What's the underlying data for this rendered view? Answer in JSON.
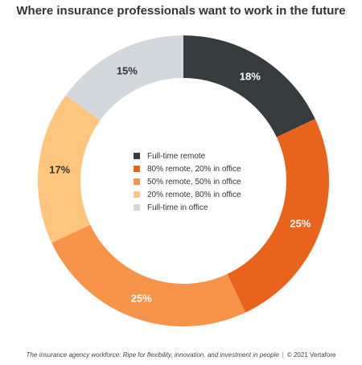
{
  "chart_data": {
    "type": "pie",
    "title": "Where insurance professionals want to work in the future",
    "slices": [
      {
        "label": "Full-time remote",
        "value": 18,
        "value_label": "18%",
        "color": "#363b3e",
        "label_color": "#ffffff"
      },
      {
        "label": "80% remote, 20% in office",
        "value": 25,
        "value_label": "25%",
        "color": "#e8641c",
        "label_color": "#ffffff"
      },
      {
        "label": "50% remote, 50% in office",
        "value": 25,
        "value_label": "25%",
        "color": "#f7944a",
        "label_color": "#ffffff"
      },
      {
        "label": "20% remote, 80% in office",
        "value": 17,
        "value_label": "17%",
        "color": "#fdc57e",
        "label_color": "#333333"
      },
      {
        "label": "Full-time in office",
        "value": 15,
        "value_label": "15%",
        "color": "#d3d8dc",
        "label_color": "#333333"
      }
    ],
    "legend_position": "center"
  },
  "footer": {
    "source": "The insurance agency workforce: Ripe for flexibility, innovation, and investment in people",
    "separator": "|",
    "credit": "© 2021 Vertafore"
  }
}
